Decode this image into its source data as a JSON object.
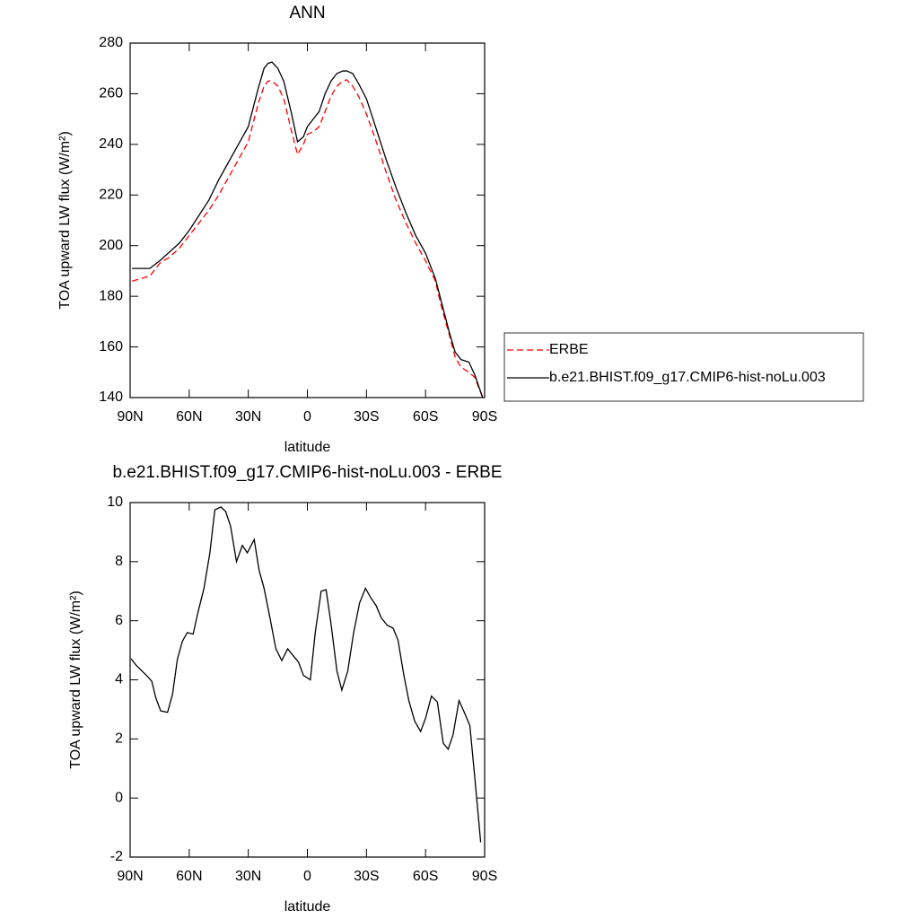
{
  "chart_data": [
    {
      "type": "line",
      "title": "ANN",
      "xlabel": "latitude",
      "ylabel": "TOA upward LW flux (W/m²)",
      "x": [
        89,
        80,
        75,
        70,
        65,
        60,
        55,
        50,
        45,
        40,
        35,
        30,
        25,
        22,
        20,
        18,
        15,
        12,
        8,
        5,
        2,
        0,
        -3,
        -6,
        -9,
        -12,
        -15,
        -18,
        -20,
        -23,
        -26,
        -30,
        -35,
        -40,
        -45,
        -50,
        -55,
        -60,
        -65,
        -68,
        -72,
        -75,
        -78,
        -82,
        -85,
        -89
      ],
      "series": [
        {
          "name": "ERBE",
          "color": "#ff0000",
          "dash": true,
          "values": [
            186,
            188,
            193,
            195.5,
            199,
            204,
            209,
            214,
            220,
            227,
            234,
            241,
            256,
            263,
            265,
            265,
            263,
            258,
            245,
            236,
            240,
            244,
            245,
            247,
            253,
            259,
            263,
            265,
            265.5,
            263,
            259,
            252,
            241,
            229,
            218,
            209,
            201,
            194,
            186,
            176,
            165,
            156,
            152,
            150,
            148,
            140
          ]
        },
        {
          "name": "b.e21.BHIST.f09_g17.CMIP6-hist-noLu.003",
          "color": "#000000",
          "dash": false,
          "values": [
            191,
            191,
            194,
            197.5,
            201,
            206,
            212,
            218,
            226,
            233,
            240,
            247,
            262,
            270,
            272,
            272.5,
            270,
            265,
            252,
            241,
            243,
            247,
            250,
            253,
            260,
            265,
            268,
            269,
            269,
            268,
            264,
            258,
            246,
            234,
            223,
            213,
            204,
            197,
            187,
            178,
            166,
            158,
            155,
            154,
            149,
            140
          ]
        }
      ],
      "xlim": [
        90,
        -90
      ],
      "xticks": [
        {
          "value": 90,
          "label": "90N"
        },
        {
          "value": 60,
          "label": "60N"
        },
        {
          "value": 30,
          "label": "30N"
        },
        0,
        {
          "value": -30,
          "label": "30S"
        },
        {
          "value": -60,
          "label": "60S"
        },
        {
          "value": -90,
          "label": "90S"
        }
      ],
      "ylim": [
        140,
        280
      ],
      "yticks": [
        140,
        160,
        180,
        200,
        220,
        240,
        260,
        280
      ],
      "legend": "right"
    },
    {
      "type": "line",
      "title": "b.e21.BHIST.f09_g17.CMIP6-hist-noLu.003 - ERBE",
      "xlabel": "latitude",
      "ylabel": "TOA upward LW flux (W/m²)",
      "x": [
        89.5,
        87,
        81,
        79,
        77,
        74.5,
        71,
        68.5,
        66,
        63.5,
        61,
        58,
        55.5,
        52.5,
        49.5,
        47,
        44,
        41.5,
        39,
        36,
        33,
        30.5,
        27,
        24.5,
        22,
        19,
        16,
        13,
        10,
        7,
        4.5,
        2,
        -1.5,
        -4,
        -7,
        -9.5,
        -12,
        -15,
        -17.5,
        -20.5,
        -23.5,
        -26.5,
        -29.5,
        -32,
        -35,
        -37.5,
        -40.5,
        -43.5,
        -46,
        -49,
        -51.5,
        -54.5,
        -57.5,
        -60,
        -63,
        -66,
        -69,
        -71.5,
        -74,
        -77,
        -80,
        -82.5,
        -85,
        -88
      ],
      "series": [
        {
          "color": "#000000",
          "dash": false,
          "values": [
            4.71,
            4.5,
            4.1,
            3.95,
            3.4,
            2.95,
            2.9,
            3.5,
            4.7,
            5.3,
            5.6,
            5.55,
            6.3,
            7.1,
            8.3,
            9.75,
            9.85,
            9.7,
            9.2,
            8.0,
            8.55,
            8.3,
            8.75,
            7.7,
            7.1,
            6.1,
            5.05,
            4.65,
            5.05,
            4.8,
            4.6,
            4.15,
            4.0,
            5.6,
            7.0,
            7.05,
            5.9,
            4.3,
            3.65,
            4.3,
            5.6,
            6.6,
            7.1,
            6.8,
            6.5,
            6.1,
            5.85,
            5.75,
            5.35,
            4.15,
            3.3,
            2.6,
            2.25,
            2.7,
            3.45,
            3.25,
            1.85,
            1.65,
            2.15,
            3.3,
            2.85,
            2.45,
            0.7,
            -1.5
          ]
        }
      ],
      "xlim": [
        90,
        -90
      ],
      "xticks": [
        {
          "value": 90,
          "label": "90N"
        },
        {
          "value": 60,
          "label": "60N"
        },
        {
          "value": 30,
          "label": "30N"
        },
        0,
        {
          "value": -30,
          "label": "30S"
        },
        {
          "value": -60,
          "label": "60S"
        },
        {
          "value": -90,
          "label": "90S"
        }
      ],
      "ylim": [
        -2,
        10
      ],
      "yticks": [
        -2,
        0,
        2,
        4,
        6,
        8,
        10
      ]
    }
  ]
}
